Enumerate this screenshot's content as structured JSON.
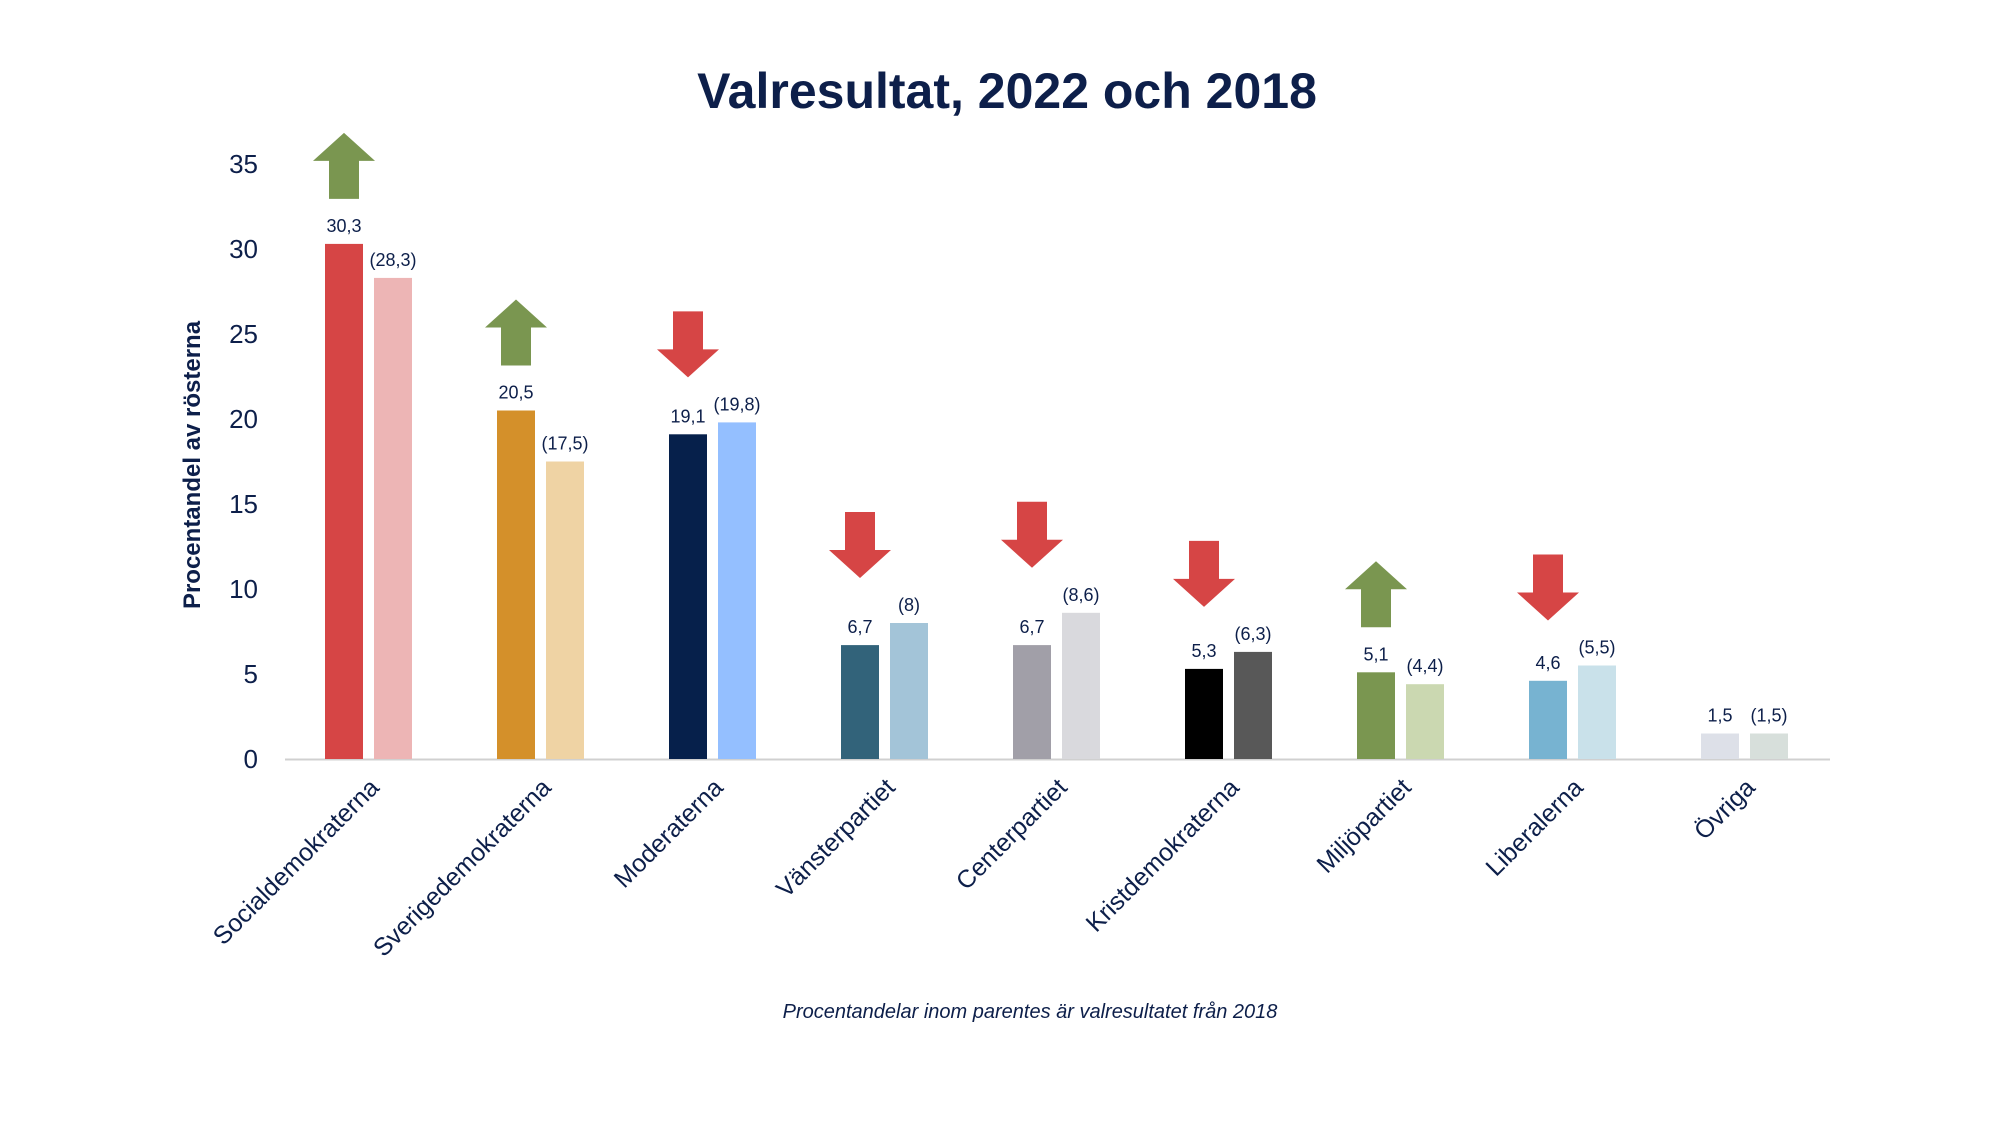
{
  "chart_data": {
    "type": "bar",
    "title": "Valresultat, 2022 och 2018",
    "ylabel": "Procentandel av rösterna",
    "xlabel": "",
    "ylim": [
      0,
      35
    ],
    "yticks": [
      0,
      5,
      10,
      15,
      20,
      25,
      30,
      35
    ],
    "grid": false,
    "categories": [
      "Socialdemokraterna",
      "Sverigedemokraterna",
      "Moderaterna",
      "Vänsterpartiet",
      "Centerpartiet",
      "Kristdemokraterna",
      "Miljöpartiet",
      "Liberalerna",
      "Övriga"
    ],
    "series": [
      {
        "values": [
          30.3,
          20.5,
          19.1,
          6.7,
          6.7,
          5.3,
          5.1,
          4.6,
          1.5
        ],
        "labels": [
          "30,3",
          "20,5",
          "19,1",
          "6,7",
          "6,7",
          "5,3",
          "5,1",
          "4,6",
          "1,5"
        ],
        "colors": [
          "#d64545",
          "#d4902a",
          "#06204b",
          "#32637a",
          "#a19fa8",
          "#000000",
          "#7a9650",
          "#77b3d1",
          "#dde0e8"
        ]
      },
      {
        "values": [
          28.3,
          17.5,
          19.8,
          8,
          8.6,
          6.3,
          4.4,
          5.5,
          1.5
        ],
        "labels": [
          "(28,3)",
          "(17,5)",
          "(19,8)",
          "(8)",
          "(8,6)",
          "(6,3)",
          "(4,4)",
          "(5,5)",
          "(1,5)"
        ],
        "colors": [
          "#edb5b5",
          "#efd3a4",
          "#94bfff",
          "#a3c4d8",
          "#d9d9dd",
          "#585858",
          "#cbd8b1",
          "#c9e1ea",
          "#d7dfdb"
        ]
      }
    ],
    "change_arrows": [
      "up",
      "up",
      "down",
      "down",
      "down",
      "down",
      "up",
      "down",
      ""
    ],
    "arrow_colors": {
      "up": "#7a9650",
      "down": "#d64545"
    },
    "note": "Procentandelar inom parentes är valresultatet från 2018"
  }
}
